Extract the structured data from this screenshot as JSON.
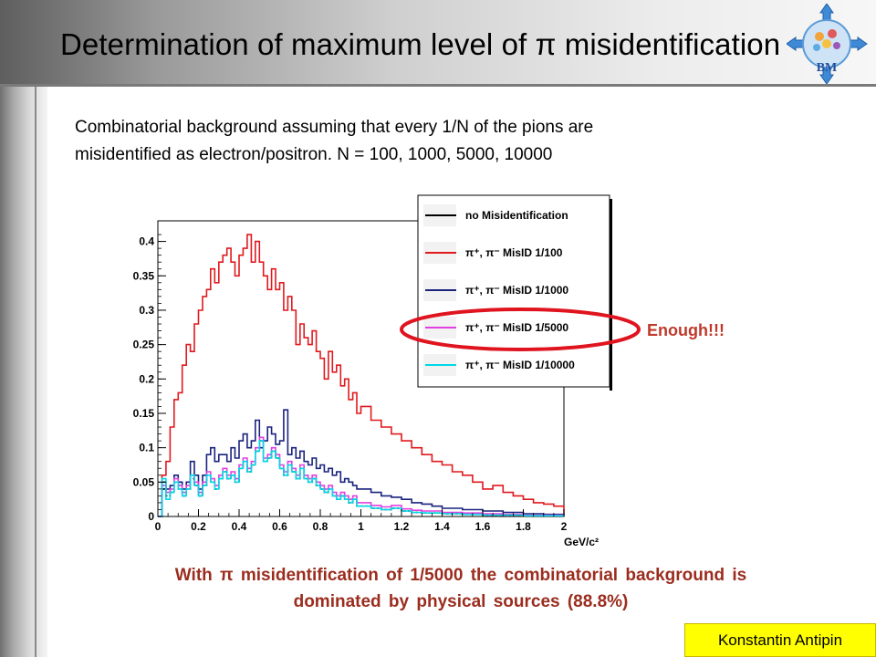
{
  "slide": {
    "title": "Determination of maximum level of π misidentification",
    "intro_line1": "Combinatorial background assuming that every 1/N of the pions are",
    "intro_line2": "misidentified as electron/positron. N = 100, 1000, 5000, 10000",
    "annotation": "Enough!!!",
    "conclusion_line1": "With π misidentification of 1/5000 the combinatorial background is",
    "conclusion_line2": "dominated by physical sources (88.8%)",
    "author": "Konstantin Antipin",
    "logo_text": "BM",
    "colors": {
      "annotation": "#c0392b",
      "conclusion": "#9b2d1e",
      "author_bg": "#ffff00",
      "highlight_ellipse": "#e0141e"
    }
  },
  "chart_data": {
    "type": "line",
    "style": "step histogram",
    "title": "",
    "xlabel": "GeV/c²",
    "ylabel": "",
    "xlim": [
      0,
      2
    ],
    "ylim": [
      0,
      0.43
    ],
    "x_ticks": [
      "0",
      "0.2",
      "0.4",
      "0.6",
      "0.8",
      "1",
      "1.2",
      "1.4",
      "1.6",
      "1.8",
      "2"
    ],
    "y_ticks": [
      "0",
      "0.05",
      "0.1",
      "0.15",
      "0.2",
      "0.25",
      "0.3",
      "0.35",
      "0.4"
    ],
    "grid": false,
    "legend_position": "top-right",
    "series": [
      {
        "name": "no Misidentification",
        "color": "#000000",
        "dashed": true,
        "x": [
          0.0,
          0.02,
          0.04,
          0.06,
          0.08,
          0.1,
          0.12,
          0.14,
          0.16,
          0.18,
          0.2,
          0.22,
          0.24,
          0.26,
          0.28,
          0.3,
          0.32,
          0.34,
          0.36,
          0.38,
          0.4,
          0.42,
          0.44,
          0.46,
          0.48,
          0.5,
          0.52,
          0.54,
          0.56,
          0.58,
          0.6,
          0.62,
          0.64,
          0.66,
          0.68,
          0.7,
          0.72,
          0.74,
          0.76,
          0.78,
          0.8,
          0.82,
          0.84,
          0.86,
          0.88,
          0.9,
          0.92,
          0.94,
          0.96,
          0.98,
          1.0,
          1.05,
          1.1,
          1.15,
          1.2,
          1.25,
          1.3,
          1.4,
          1.5,
          1.6,
          1.7,
          1.8,
          1.9,
          2.0
        ],
        "y": [
          0.0,
          0.04,
          0.03,
          0.035,
          0.05,
          0.04,
          0.03,
          0.04,
          0.055,
          0.045,
          0.03,
          0.045,
          0.06,
          0.05,
          0.04,
          0.055,
          0.065,
          0.055,
          0.06,
          0.05,
          0.07,
          0.08,
          0.065,
          0.075,
          0.095,
          0.11,
          0.08,
          0.085,
          0.095,
          0.085,
          0.07,
          0.06,
          0.075,
          0.065,
          0.055,
          0.07,
          0.055,
          0.05,
          0.055,
          0.045,
          0.04,
          0.035,
          0.04,
          0.03,
          0.025,
          0.03,
          0.025,
          0.02,
          0.025,
          0.015,
          0.015,
          0.012,
          0.01,
          0.012,
          0.008,
          0.006,
          0.005,
          0.004,
          0.003,
          0.002,
          0.002,
          0.001,
          0.001,
          0.0
        ]
      },
      {
        "name": "π⁺, π⁻ MisID 1/100",
        "color": "#e0191e",
        "x": [
          0.0,
          0.02,
          0.04,
          0.06,
          0.08,
          0.1,
          0.12,
          0.14,
          0.16,
          0.18,
          0.2,
          0.22,
          0.24,
          0.26,
          0.28,
          0.3,
          0.32,
          0.34,
          0.36,
          0.38,
          0.4,
          0.42,
          0.44,
          0.46,
          0.48,
          0.5,
          0.52,
          0.54,
          0.56,
          0.58,
          0.6,
          0.62,
          0.64,
          0.66,
          0.68,
          0.7,
          0.72,
          0.74,
          0.76,
          0.78,
          0.8,
          0.82,
          0.84,
          0.86,
          0.88,
          0.9,
          0.92,
          0.94,
          0.96,
          0.98,
          1.0,
          1.05,
          1.1,
          1.15,
          1.2,
          1.25,
          1.3,
          1.35,
          1.4,
          1.45,
          1.5,
          1.55,
          1.6,
          1.65,
          1.7,
          1.75,
          1.8,
          1.85,
          1.9,
          1.95,
          2.0
        ],
        "y": [
          0.0,
          0.06,
          0.08,
          0.13,
          0.17,
          0.18,
          0.22,
          0.25,
          0.24,
          0.28,
          0.3,
          0.32,
          0.33,
          0.36,
          0.34,
          0.37,
          0.38,
          0.39,
          0.37,
          0.35,
          0.38,
          0.39,
          0.41,
          0.37,
          0.4,
          0.37,
          0.35,
          0.33,
          0.36,
          0.33,
          0.34,
          0.3,
          0.32,
          0.3,
          0.25,
          0.28,
          0.26,
          0.25,
          0.27,
          0.24,
          0.23,
          0.2,
          0.24,
          0.21,
          0.22,
          0.19,
          0.2,
          0.17,
          0.18,
          0.15,
          0.16,
          0.14,
          0.13,
          0.12,
          0.11,
          0.1,
          0.09,
          0.08,
          0.075,
          0.065,
          0.06,
          0.05,
          0.04,
          0.045,
          0.035,
          0.03,
          0.025,
          0.02,
          0.018,
          0.015,
          0.0
        ]
      },
      {
        "name": "π⁺, π⁻ MisID 1/1000",
        "color": "#1a237e",
        "x": [
          0.0,
          0.02,
          0.04,
          0.06,
          0.08,
          0.1,
          0.12,
          0.14,
          0.16,
          0.18,
          0.2,
          0.22,
          0.24,
          0.26,
          0.28,
          0.3,
          0.32,
          0.34,
          0.36,
          0.38,
          0.4,
          0.42,
          0.44,
          0.46,
          0.48,
          0.5,
          0.52,
          0.54,
          0.56,
          0.58,
          0.6,
          0.62,
          0.64,
          0.66,
          0.68,
          0.7,
          0.72,
          0.74,
          0.76,
          0.78,
          0.8,
          0.82,
          0.84,
          0.86,
          0.88,
          0.9,
          0.92,
          0.94,
          0.96,
          0.98,
          1.0,
          1.05,
          1.1,
          1.15,
          1.2,
          1.25,
          1.3,
          1.35,
          1.4,
          1.5,
          1.6,
          1.7,
          1.8,
          1.9,
          2.0
        ],
        "y": [
          0.0,
          0.05,
          0.04,
          0.045,
          0.06,
          0.05,
          0.04,
          0.05,
          0.08,
          0.06,
          0.04,
          0.06,
          0.09,
          0.1,
          0.08,
          0.09,
          0.09,
          0.08,
          0.1,
          0.085,
          0.11,
          0.12,
          0.1,
          0.11,
          0.14,
          0.1,
          0.11,
          0.13,
          0.12,
          0.105,
          0.11,
          0.155,
          0.09,
          0.1,
          0.085,
          0.095,
          0.08,
          0.075,
          0.085,
          0.07,
          0.075,
          0.065,
          0.07,
          0.06,
          0.065,
          0.05,
          0.055,
          0.05,
          0.045,
          0.04,
          0.04,
          0.035,
          0.03,
          0.028,
          0.025,
          0.02,
          0.018,
          0.015,
          0.012,
          0.01,
          0.008,
          0.006,
          0.004,
          0.003,
          0.0
        ]
      },
      {
        "name": "π⁺, π⁻ MisID 1/5000",
        "color": "#e040e0",
        "x": [
          0.0,
          0.02,
          0.04,
          0.06,
          0.08,
          0.1,
          0.12,
          0.14,
          0.16,
          0.18,
          0.2,
          0.22,
          0.24,
          0.26,
          0.28,
          0.3,
          0.32,
          0.34,
          0.36,
          0.38,
          0.4,
          0.42,
          0.44,
          0.46,
          0.48,
          0.5,
          0.52,
          0.54,
          0.56,
          0.58,
          0.6,
          0.62,
          0.64,
          0.66,
          0.68,
          0.7,
          0.72,
          0.74,
          0.76,
          0.78,
          0.8,
          0.82,
          0.84,
          0.86,
          0.88,
          0.9,
          0.92,
          0.94,
          0.96,
          0.98,
          1.0,
          1.05,
          1.1,
          1.15,
          1.2,
          1.25,
          1.3,
          1.4,
          1.5,
          1.6,
          1.7,
          1.8,
          1.9,
          2.0
        ],
        "y": [
          0.0,
          0.045,
          0.035,
          0.04,
          0.055,
          0.045,
          0.035,
          0.045,
          0.06,
          0.05,
          0.035,
          0.05,
          0.065,
          0.055,
          0.045,
          0.06,
          0.07,
          0.06,
          0.065,
          0.055,
          0.075,
          0.085,
          0.07,
          0.08,
          0.1,
          0.115,
          0.085,
          0.09,
          0.1,
          0.09,
          0.075,
          0.065,
          0.08,
          0.07,
          0.06,
          0.075,
          0.06,
          0.055,
          0.06,
          0.05,
          0.045,
          0.04,
          0.045,
          0.035,
          0.03,
          0.035,
          0.03,
          0.025,
          0.03,
          0.02,
          0.02,
          0.016,
          0.014,
          0.016,
          0.011,
          0.009,
          0.008,
          0.006,
          0.005,
          0.004,
          0.003,
          0.002,
          0.002,
          0.0
        ]
      },
      {
        "name": "π⁺, π⁻ MisID 1/10000",
        "color": "#00d8e8",
        "x": [
          0.0,
          0.02,
          0.04,
          0.06,
          0.08,
          0.1,
          0.12,
          0.14,
          0.16,
          0.18,
          0.2,
          0.22,
          0.24,
          0.26,
          0.28,
          0.3,
          0.32,
          0.34,
          0.36,
          0.38,
          0.4,
          0.42,
          0.44,
          0.46,
          0.48,
          0.5,
          0.52,
          0.54,
          0.56,
          0.58,
          0.6,
          0.62,
          0.64,
          0.66,
          0.68,
          0.7,
          0.72,
          0.74,
          0.76,
          0.78,
          0.8,
          0.82,
          0.84,
          0.86,
          0.88,
          0.9,
          0.92,
          0.94,
          0.96,
          0.98,
          1.0,
          1.05,
          1.1,
          1.15,
          1.2,
          1.25,
          1.3,
          1.4,
          1.5,
          1.6,
          1.7,
          1.8,
          1.9,
          2.0
        ],
        "y": [
          0.0,
          0.055,
          0.025,
          0.035,
          0.05,
          0.04,
          0.03,
          0.04,
          0.06,
          0.045,
          0.03,
          0.045,
          0.06,
          0.05,
          0.04,
          0.055,
          0.065,
          0.055,
          0.06,
          0.05,
          0.07,
          0.08,
          0.065,
          0.075,
          0.095,
          0.11,
          0.08,
          0.085,
          0.095,
          0.085,
          0.07,
          0.06,
          0.075,
          0.065,
          0.055,
          0.07,
          0.055,
          0.05,
          0.055,
          0.045,
          0.04,
          0.035,
          0.04,
          0.03,
          0.025,
          0.03,
          0.025,
          0.02,
          0.025,
          0.015,
          0.015,
          0.012,
          0.01,
          0.012,
          0.008,
          0.006,
          0.005,
          0.004,
          0.003,
          0.002,
          0.002,
          0.001,
          0.001,
          0.0
        ]
      }
    ]
  }
}
